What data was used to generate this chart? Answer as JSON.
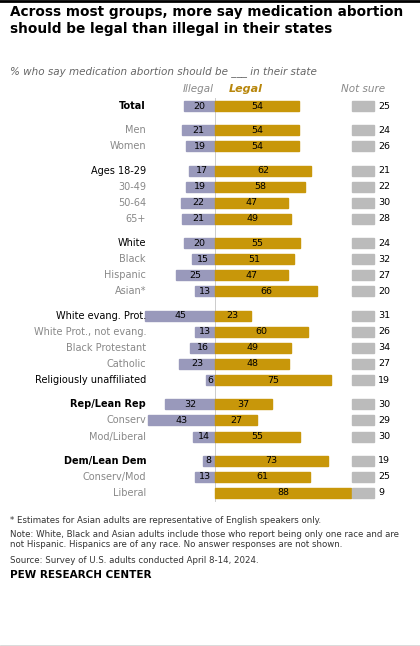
{
  "title": "Across most groups, more say medication abortion\nshould be legal than illegal in their states",
  "subtitle": "% who say medication abortion should be ___ in their state",
  "categories": [
    "Total",
    "Men",
    "Women",
    "Ages 18-29",
    "30-49",
    "50-64",
    "65+",
    "White",
    "Black",
    "Hispanic",
    "Asian*",
    "White evang. Prot.",
    "White Prot., not evang.",
    "Black Protestant",
    "Catholic",
    "Religiously unaffiliated",
    "Rep/Lean Rep",
    "Conserv",
    "Mod/Liberal",
    "Dem/Lean Dem",
    "Conserv/Mod",
    "Liberal"
  ],
  "illegal": [
    20,
    21,
    19,
    17,
    19,
    22,
    21,
    20,
    15,
    25,
    13,
    45,
    13,
    16,
    23,
    6,
    32,
    43,
    14,
    8,
    13,
    0
  ],
  "legal": [
    54,
    54,
    54,
    62,
    58,
    47,
    49,
    55,
    51,
    47,
    66,
    23,
    60,
    49,
    48,
    75,
    37,
    27,
    55,
    73,
    61,
    88
  ],
  "not_sure": [
    25,
    24,
    26,
    21,
    22,
    30,
    28,
    24,
    32,
    27,
    20,
    31,
    26,
    34,
    27,
    19,
    30,
    29,
    30,
    19,
    25,
    9
  ],
  "bold_rows": [
    0,
    16,
    19
  ],
  "gray_rows": [
    1,
    2,
    4,
    5,
    6,
    8,
    9,
    10,
    12,
    13,
    14,
    17,
    18,
    20,
    21
  ],
  "indent_rows": [
    1,
    2,
    4,
    5,
    6,
    8,
    9,
    10,
    12,
    13,
    14,
    17,
    18,
    20,
    21
  ],
  "group_breaks_after": [
    0,
    2,
    6,
    10,
    15,
    18
  ],
  "color_illegal": "#9999bb",
  "color_legal": "#c8970a",
  "color_not_sure": "#bbbbbb",
  "illegal_label": "Illegal",
  "legal_label": "Legal",
  "not_sure_label": "Not sure",
  "footnote1": "* Estimates for Asian adults are representative of English speakers only.",
  "footnote2": "Note: White, Black and Asian adults include those who report being only one race and are\nnot Hispanic. Hispanics are of any race. No answer responses are not shown.",
  "footnote3": "Source: Survey of U.S. adults conducted April 8-14, 2024.",
  "footer": "PEW RESEARCH CENTER"
}
